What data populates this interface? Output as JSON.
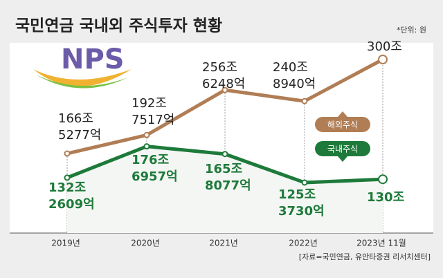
{
  "chart_data": {
    "type": "line",
    "title": "국민연금 국내외 주식투자 현황",
    "unit_note": "*단위: 원",
    "source": "[자료=국민연금, 유안타증권 리서치센터]",
    "logo": "NPS",
    "categories": [
      "2019년",
      "2020년",
      "2021년",
      "2022년",
      "2023년 11월"
    ],
    "series": [
      {
        "name": "해외주식",
        "color": "#b07d55",
        "values": [
          166.5277,
          192.7517,
          256.6248,
          240.894,
          300
        ],
        "value_labels": [
          [
            "166조",
            "5277억"
          ],
          [
            "192조",
            "7517억"
          ],
          [
            "256조",
            "6248억"
          ],
          [
            "240조",
            "8940억"
          ],
          [
            "300조"
          ]
        ]
      },
      {
        "name": "국내주식",
        "color": "#1e7a3a",
        "values": [
          132.2609,
          176.6957,
          165.8077,
          125.373,
          130
        ],
        "value_labels": [
          [
            "132조",
            "2609억"
          ],
          [
            "176조",
            "6957억"
          ],
          [
            "165조",
            "8077억"
          ],
          [
            "125조",
            "3730억"
          ],
          [
            "130조"
          ]
        ]
      }
    ]
  }
}
